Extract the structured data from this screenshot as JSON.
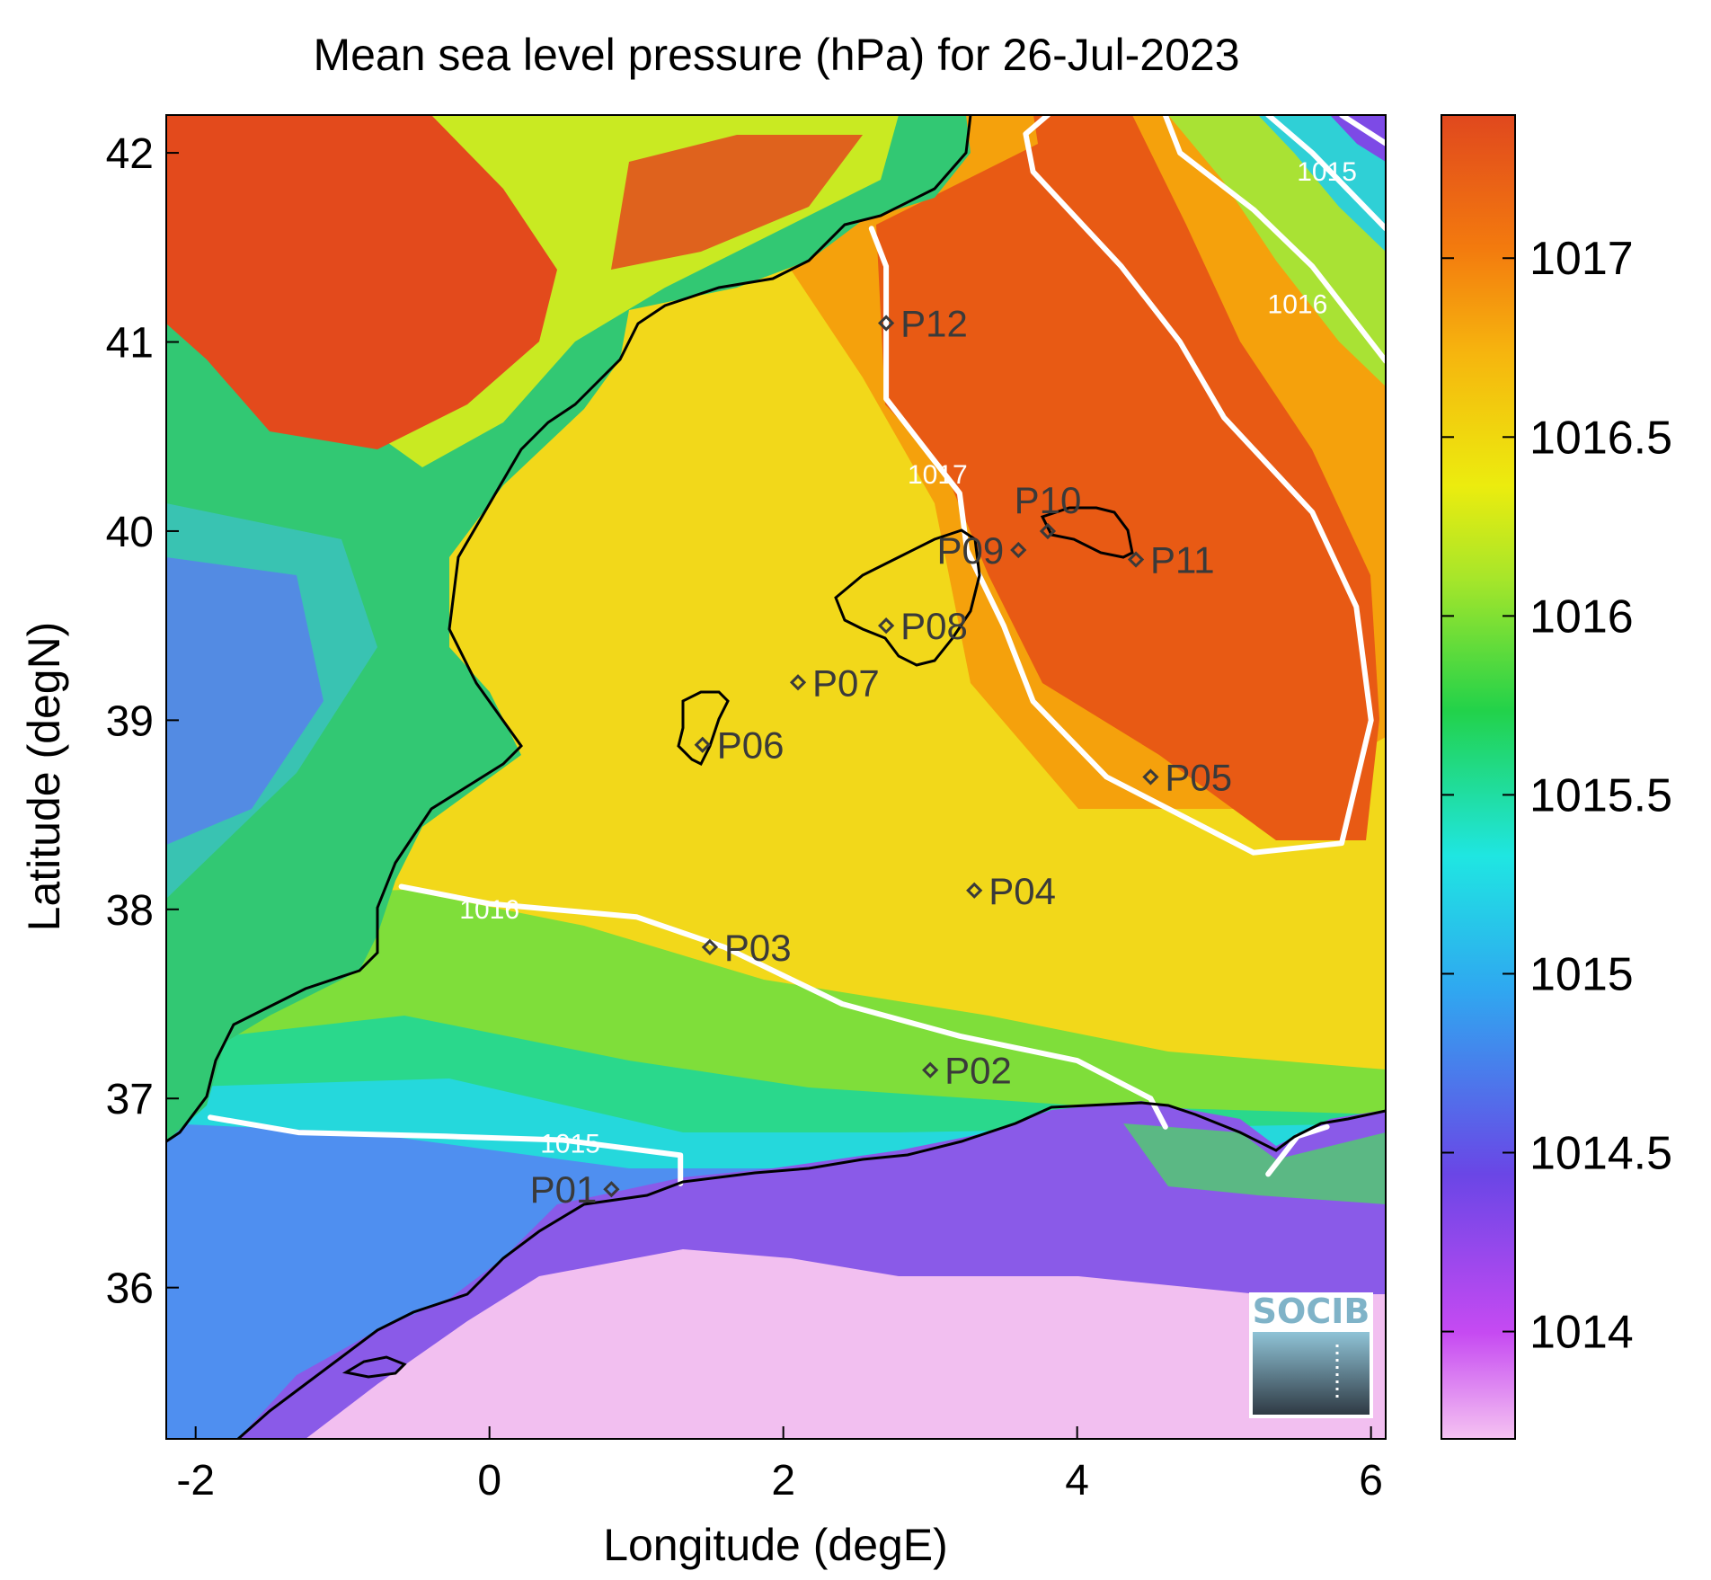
{
  "title": "Mean sea level pressure (hPa) for 26-Jul-2023",
  "xlabel": "Longitude (degE)",
  "ylabel": "Latitude (degN)",
  "x_ticks": [
    "-2",
    "0",
    "2",
    "4",
    "6"
  ],
  "y_ticks": [
    "42",
    "41",
    "40",
    "39",
    "38",
    "37",
    "36"
  ],
  "colorbar": {
    "ticks": [
      "1017",
      "1016.5",
      "1016",
      "1015.5",
      "1015",
      "1014.5",
      "1014"
    ],
    "colors": [
      "#f5c3f2",
      "#c64af2",
      "#6a46e6",
      "#2fa8f0",
      "#1fe6e2",
      "#22d24a",
      "#a7e62a",
      "#ecec0e",
      "#f6b50e",
      "#f37a0e",
      "#e0481e"
    ]
  },
  "logo": "SOCIB",
  "chart_data": {
    "type": "heatmap",
    "variable": "Mean sea level pressure (hPa)",
    "date": "26-Jul-2023",
    "xlim": [
      -2.2,
      6.1
    ],
    "ylim": [
      35.2,
      42.2
    ],
    "color_range": [
      1013.7,
      1017.4
    ],
    "contours": [
      {
        "level": "1015",
        "label": "1015",
        "points": [
          [
            -1.9,
            36.9
          ],
          [
            -1.3,
            36.82
          ],
          [
            -0.3,
            36.8
          ],
          [
            0.5,
            36.78
          ],
          [
            1.3,
            36.7
          ],
          [
            1.3,
            36.55
          ]
        ],
        "label_at": [
          0.55,
          36.76
        ]
      },
      {
        "level": "1016",
        "label": "1016",
        "points": [
          [
            -0.6,
            38.12
          ],
          [
            0,
            38.03
          ],
          [
            1,
            37.96
          ],
          [
            1.6,
            37.8
          ],
          [
            2.4,
            37.5
          ],
          [
            3.2,
            37.33
          ],
          [
            4,
            37.2
          ],
          [
            4.5,
            37.0
          ],
          [
            4.6,
            36.85
          ]
        ],
        "label_at": [
          0.0,
          38.0
        ]
      },
      {
        "level": "1016",
        "label": "1016",
        "points": [
          [
            5.3,
            36.6
          ],
          [
            5.5,
            36.8
          ],
          [
            5.7,
            36.85
          ]
        ],
        "label_at": null
      },
      {
        "level": "1017",
        "label": "1017",
        "points": [
          [
            2.6,
            41.6
          ],
          [
            2.7,
            41.4
          ],
          [
            2.7,
            40.7
          ],
          [
            2.9,
            40.5
          ],
          [
            3.2,
            40.2
          ],
          [
            3.25,
            39.9
          ],
          [
            3.5,
            39.5
          ],
          [
            3.7,
            39.1
          ],
          [
            4.2,
            38.7
          ],
          [
            5.2,
            38.3
          ],
          [
            5.8,
            38.35
          ],
          [
            6.0,
            39.0
          ],
          [
            5.9,
            39.6
          ],
          [
            5.6,
            40.1
          ],
          [
            5.0,
            40.6
          ],
          [
            4.7,
            41.0
          ],
          [
            4.3,
            41.4
          ],
          [
            3.7,
            41.9
          ],
          [
            3.65,
            42.1
          ],
          [
            3.8,
            42.2
          ]
        ],
        "label_at": [
          3.05,
          40.3
        ]
      },
      {
        "level": "1016",
        "label": "1016",
        "points": [
          [
            4.6,
            42.2
          ],
          [
            4.7,
            42.0
          ],
          [
            5.2,
            41.7
          ],
          [
            5.6,
            41.4
          ],
          [
            6.1,
            40.9
          ]
        ],
        "label_at": [
          5.5,
          41.2
        ]
      },
      {
        "level": "1015",
        "label": "1015",
        "points": [
          [
            5.3,
            42.2
          ],
          [
            5.6,
            42.0
          ],
          [
            6.1,
            41.6
          ]
        ],
        "label_at": [
          5.7,
          41.9
        ]
      },
      {
        "level": "1014.5",
        "label": "",
        "points": [
          [
            5.8,
            42.2
          ],
          [
            6.1,
            42.05
          ]
        ],
        "label_at": null
      }
    ],
    "stations": [
      {
        "name": "P01",
        "lon": 0.83,
        "lat": 36.52,
        "label_side": "left"
      },
      {
        "name": "P02",
        "lon": 3.0,
        "lat": 37.15,
        "label_side": "right"
      },
      {
        "name": "P03",
        "lon": 1.5,
        "lat": 37.8,
        "label_side": "right"
      },
      {
        "name": "P04",
        "lon": 3.3,
        "lat": 38.1,
        "label_side": "right"
      },
      {
        "name": "P05",
        "lon": 4.5,
        "lat": 38.7,
        "label_side": "right"
      },
      {
        "name": "P06",
        "lon": 1.45,
        "lat": 38.87,
        "label_side": "right"
      },
      {
        "name": "P07",
        "lon": 2.1,
        "lat": 39.2,
        "label_side": "right"
      },
      {
        "name": "P08",
        "lon": 2.7,
        "lat": 39.5,
        "label_side": "right"
      },
      {
        "name": "P09",
        "lon": 3.6,
        "lat": 39.9,
        "label_side": "left"
      },
      {
        "name": "P10",
        "lon": 3.8,
        "lat": 40.0,
        "label_side": "above"
      },
      {
        "name": "P11",
        "lon": 4.4,
        "lat": 39.85,
        "label_side": "right"
      },
      {
        "name": "P12",
        "lon": 2.7,
        "lat": 41.1,
        "label_side": "right"
      }
    ]
  }
}
